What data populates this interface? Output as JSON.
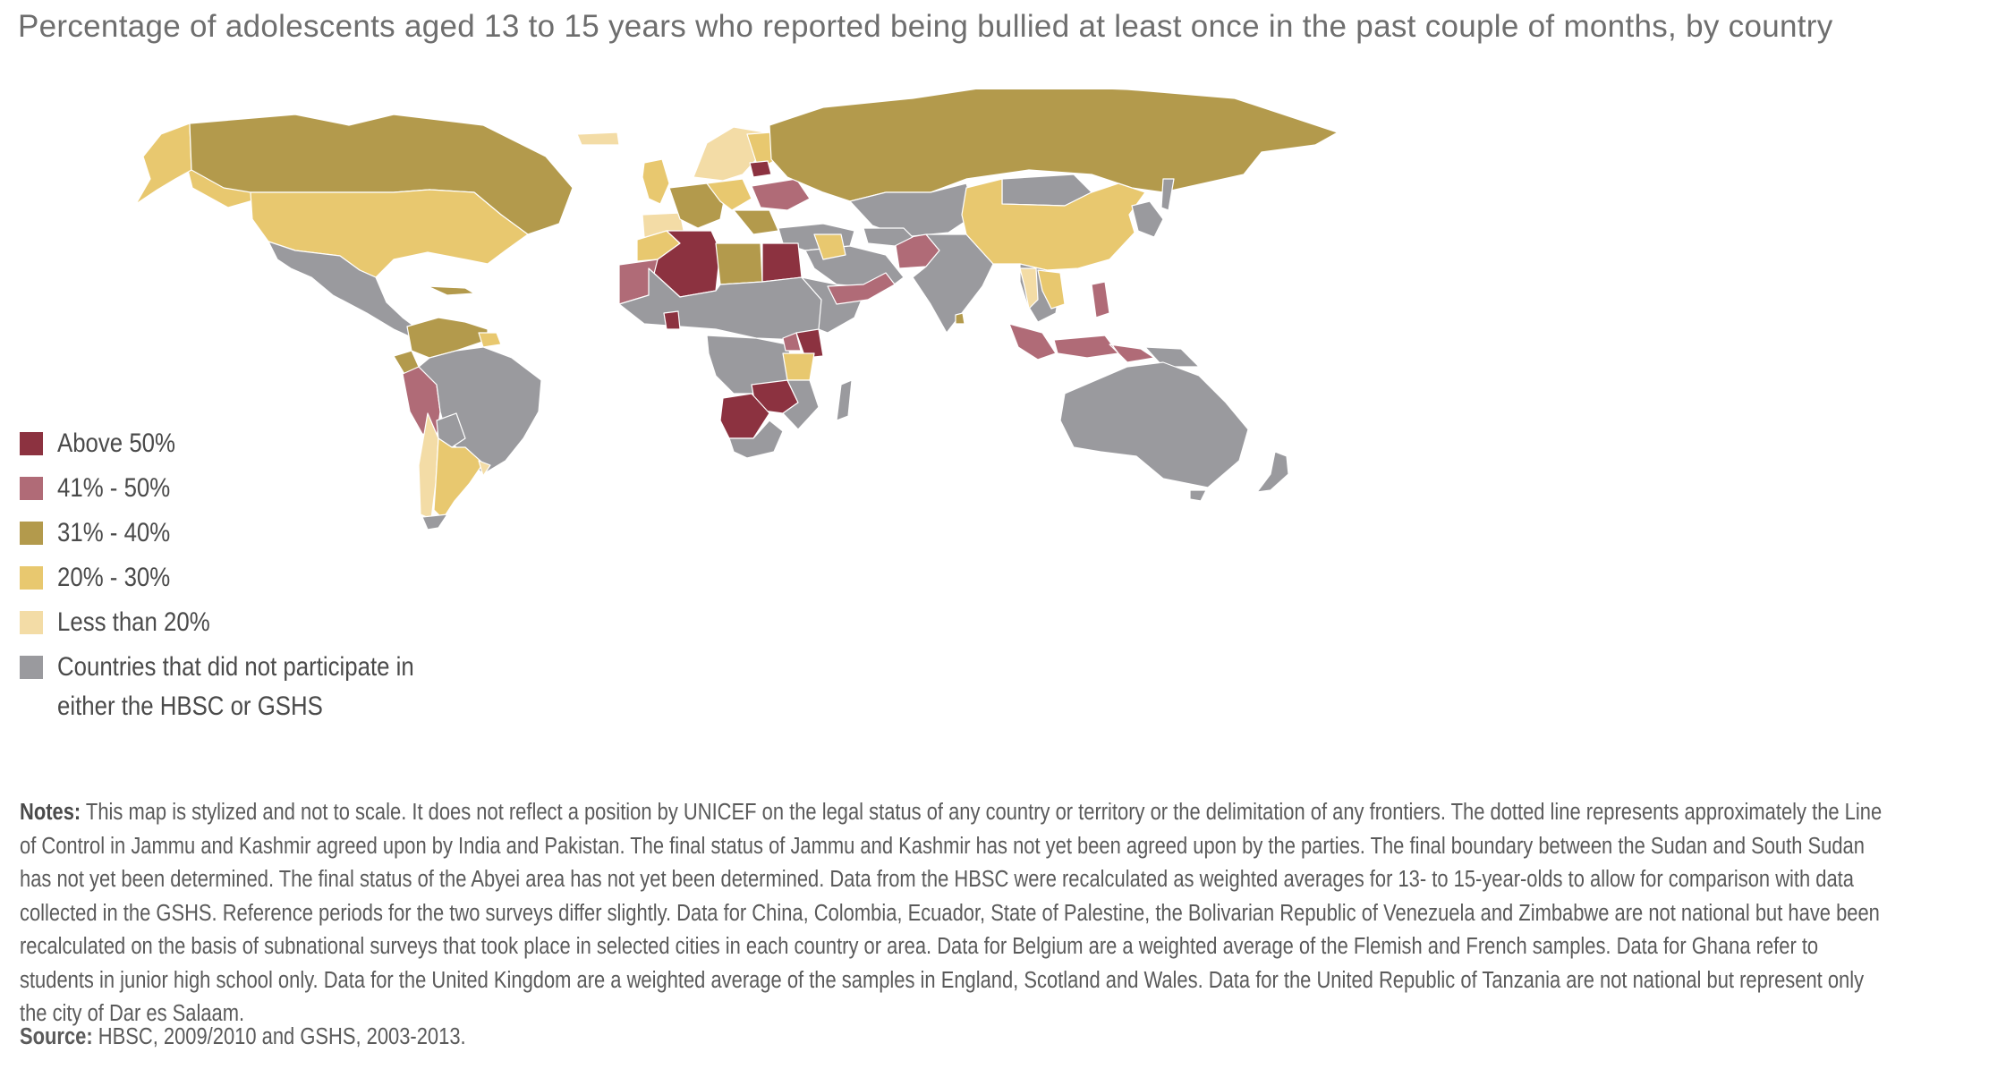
{
  "title": "Percentage of adolescents aged 13 to 15 years who reported being bullied at least once in the past couple of months, by country",
  "colors": {
    "above_50": "#8c3240",
    "c41_50": "#b06b77",
    "c31_40": "#b39a4c",
    "c20_30": "#e8c86f",
    "less_20": "#f3dca6",
    "no_data": "#9a9a9e"
  },
  "legend": [
    {
      "key": "above_50",
      "label": "Above 50%"
    },
    {
      "key": "c41_50",
      "label": "41% - 50%"
    },
    {
      "key": "c31_40",
      "label": "31% - 40%"
    },
    {
      "key": "c20_30",
      "label": "20% - 30%"
    },
    {
      "key": "less_20",
      "label": "Less than 20%"
    },
    {
      "key": "no_data",
      "label_line1": "Countries that did not participate in",
      "label_line2": "either the HBSC or GSHS"
    }
  ],
  "notes": {
    "heading": "Notes:",
    "text": "This map is stylized and not to scale. It does not reflect a position by UNICEF on the legal status of any country or territory or the delimitation of any frontiers. The dotted line represents approximately the Line of Control in Jammu and Kashmir agreed upon by India and Pakistan. The final status of Jammu and Kashmir has not yet been agreed upon by the parties. The final boundary between the Sudan and South Sudan has not yet been determined. The final status of the Abyei area has not yet been determined. Data from the HBSC were recalculated as weighted averages for 13- to 15-year-olds to allow for comparison with data collected in the GSHS. Reference periods for the two surveys differ slightly. Data for China, Colombia, Ecuador, State of Palestine, the Bolivarian Republic of Venezuela and Zimbabwe are not national but have been recalculated on the basis of subnational surveys that took place in selected cities in each country or area. Data for Belgium are a weighted average of the Flemish and French samples. Data for Ghana refer to students in junior high school only. Data for the United Kingdom are a weighted average of the samples in England, Scotland and Wales. Data for the United Republic of Tanzania are not national but represent only the city of Dar es Salaam."
  },
  "source": {
    "heading": "Source:",
    "text": "HBSC, 2009/2010 and GSHS, 2003-2013."
  }
}
